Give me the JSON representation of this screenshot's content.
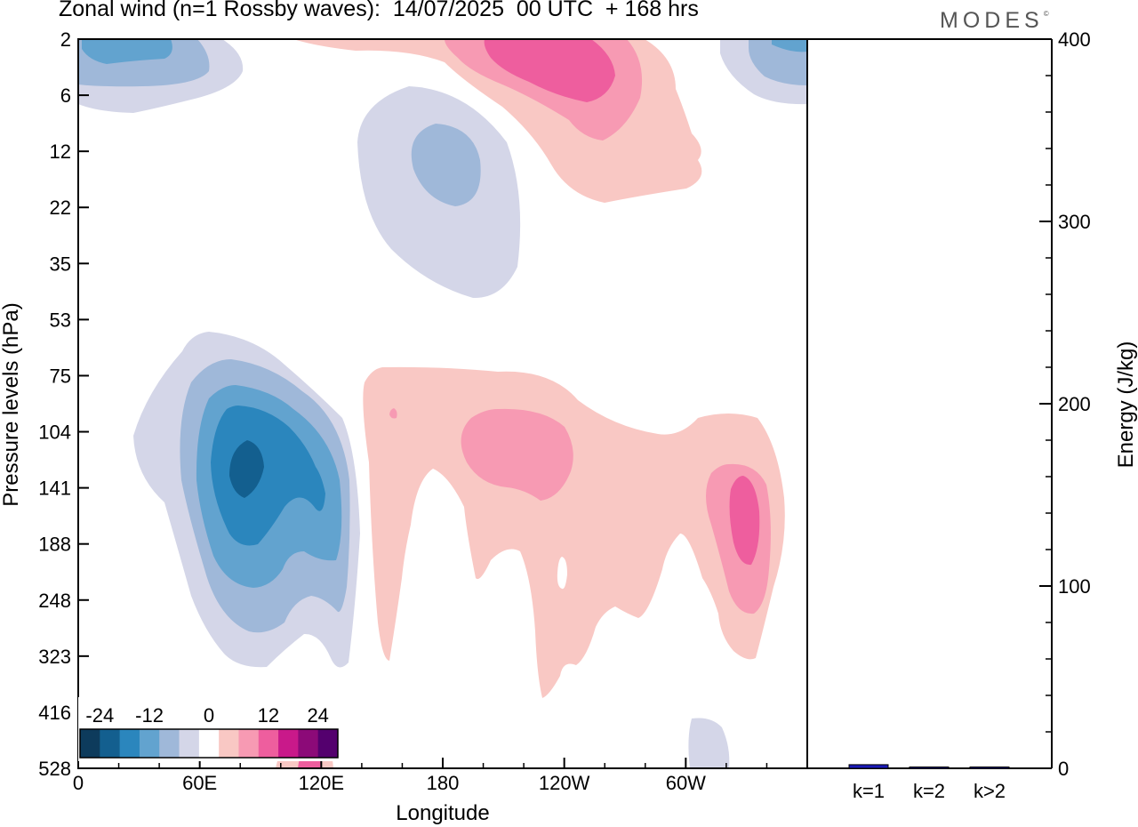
{
  "title": "Zonal wind (n=1 Rossby waves):  14/07/2025  00 UTC  + 168 hrs",
  "logo": "MODES",
  "logo_mark": "©",
  "chart_data": [
    {
      "type": "heatmap",
      "title": "Zonal wind (n=1 Rossby waves):  14/07/2025  00 UTC  + 168 hrs",
      "xlabel": "Longitude",
      "ylabel": "Pressure levels (hPa)",
      "x_ticks": [
        "0",
        "60E",
        "120E",
        "180",
        "120W",
        "60W"
      ],
      "x_tick_degrees": [
        0,
        60,
        120,
        180,
        240,
        300
      ],
      "xlim": [
        0,
        360
      ],
      "y_ticks": [
        "2",
        "6",
        "12",
        "22",
        "35",
        "53",
        "75",
        "104",
        "141",
        "188",
        "248",
        "323",
        "416",
        "528"
      ],
      "colorbar": {
        "labels": [
          "-24",
          "-12",
          "0",
          "12",
          "24"
        ],
        "levels": [
          -30,
          -25,
          -20,
          -15,
          -10,
          -5,
          5,
          10,
          15,
          20,
          25,
          30
        ],
        "colors": [
          "#0d3b5c",
          "#135f8f",
          "#2b86bd",
          "#62a3cf",
          "#9fb8d9",
          "#d4d6e8",
          "#ffffff",
          "#f9c8c4",
          "#f79ab3",
          "#ee5e9e",
          "#c9198a",
          "#8c0a78",
          "#54006e"
        ]
      }
    },
    {
      "type": "bar",
      "ylabel": "Energy (J/kg)",
      "ylim": [
        0,
        400
      ],
      "y_ticks": [
        "0",
        "100",
        "200",
        "300",
        "400"
      ],
      "categories": [
        "k=1",
        "k=2",
        "k>2"
      ],
      "values": [
        2,
        0.5,
        0.5
      ],
      "colors": [
        "#1a1ab8",
        "#1a1ab8",
        "#1a1ab8"
      ]
    }
  ]
}
